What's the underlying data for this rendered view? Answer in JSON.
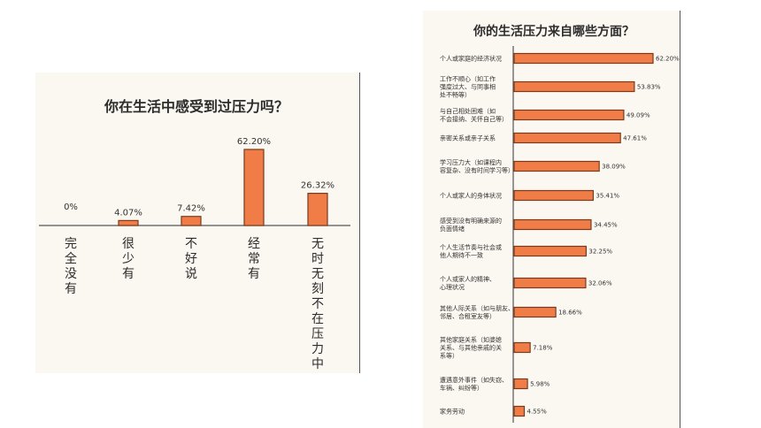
{
  "chart_data": [
    {
      "type": "bar",
      "title": "你在生活中感受到过压力吗？",
      "categories": [
        "完全没有",
        "很少有",
        "不好说",
        "经常有",
        "无时无刻不在压力中"
      ],
      "value_labels": [
        "0%",
        "4.07%",
        "7.42%",
        "62.20%",
        "26.32%"
      ],
      "values": [
        0,
        4.07,
        7.42,
        62.2,
        26.32
      ],
      "ylim": [
        0,
        70
      ]
    },
    {
      "type": "bar",
      "orientation": "horizontal",
      "title": "你的生活压力来自哪些方面？",
      "categories": [
        [
          "个人或家庭的经济状况"
        ],
        [
          "工作不顺心（如工作",
          "强度过大、与同事相",
          "处不畅等）"
        ],
        [
          "与自己相处困难（如",
          "不会接纳、关怀自己等）"
        ],
        [
          "亲密关系或亲子关系"
        ],
        [
          "学习压力大（如课程内",
          "容复杂、没有时间学习等）"
        ],
        [
          "个人或家人的身体状况"
        ],
        [
          "感受到没有明确来源的",
          "负面情绪"
        ],
        [
          "个人生活节奏与社会或",
          "他人期待不一致"
        ],
        [
          "个人或家人的精神、",
          "心理状况"
        ],
        [
          "其他人际关系（如与朋友、",
          "邻居、合租室友等）"
        ],
        [
          "其他家庭关系（如婆媳",
          "关系、与其他亲戚的关",
          "系等）"
        ],
        [
          "遭遇意外事件（如失窃、",
          "车祸、纠纷等）"
        ],
        [
          "家务劳动"
        ]
      ],
      "value_labels": [
        "62.20%",
        "53.83%",
        "49.09%",
        "47.61%",
        "38.09%",
        "35.41%",
        "34.45%",
        "32.25%",
        "32.06%",
        "18.66%",
        "7.18%",
        "5.98%",
        "4.55%"
      ],
      "values": [
        62.2,
        53.83,
        49.09,
        47.61,
        38.09,
        35.41,
        34.45,
        32.25,
        32.06,
        18.66,
        7.18,
        5.98,
        4.55
      ],
      "xlim": [
        0,
        62.2
      ]
    }
  ],
  "colors": {
    "bar": "#f07d48",
    "bar_border": "#7a3a1c"
  }
}
